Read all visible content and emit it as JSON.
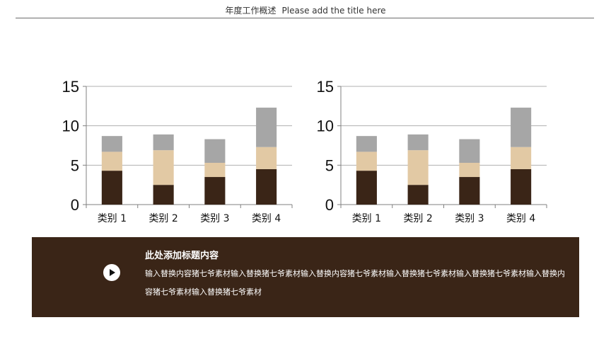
{
  "header": {
    "title_cn": "年度工作概述",
    "title_en": "Please add the title here"
  },
  "colors": {
    "series_bottom": "#3a2517",
    "series_middle": "#e2c9a4",
    "series_top": "#a6a6a6",
    "panel_bg": "#3a2517",
    "axis": "#808080"
  },
  "chart_data": [
    {
      "type": "bar",
      "stacked": true,
      "categories": [
        "类别 1",
        "类别 2",
        "类别 3",
        "类别 4"
      ],
      "series": [
        {
          "values": [
            4.3,
            2.5,
            3.5,
            4.5
          ]
        },
        {
          "values": [
            2.4,
            4.4,
            1.8,
            2.8
          ]
        },
        {
          "values": [
            2.0,
            2.0,
            3.0,
            5.0
          ]
        }
      ],
      "ylim": [
        0,
        15
      ],
      "yticks": [
        0,
        5,
        10,
        15
      ],
      "grid": true
    },
    {
      "type": "bar",
      "stacked": true,
      "categories": [
        "类别 1",
        "类别 2",
        "类别 3",
        "类别 4"
      ],
      "series": [
        {
          "values": [
            4.3,
            2.5,
            3.5,
            4.5
          ]
        },
        {
          "values": [
            2.4,
            4.4,
            1.8,
            2.8
          ]
        },
        {
          "values": [
            2.0,
            2.0,
            3.0,
            5.0
          ]
        }
      ],
      "ylim": [
        0,
        15
      ],
      "yticks": [
        0,
        5,
        10,
        15
      ],
      "grid": true
    }
  ],
  "panel": {
    "play_icon": "play-icon",
    "title": "此处添加标题内容",
    "body": "输入替换内容猪七爷素材输入替换猪七爷素材输入替换内容猪七爷素材输入替换猪七爷素材输入替换猪七爷素材输入替换内容猪七爷素材输入替换猪七爷素材"
  }
}
